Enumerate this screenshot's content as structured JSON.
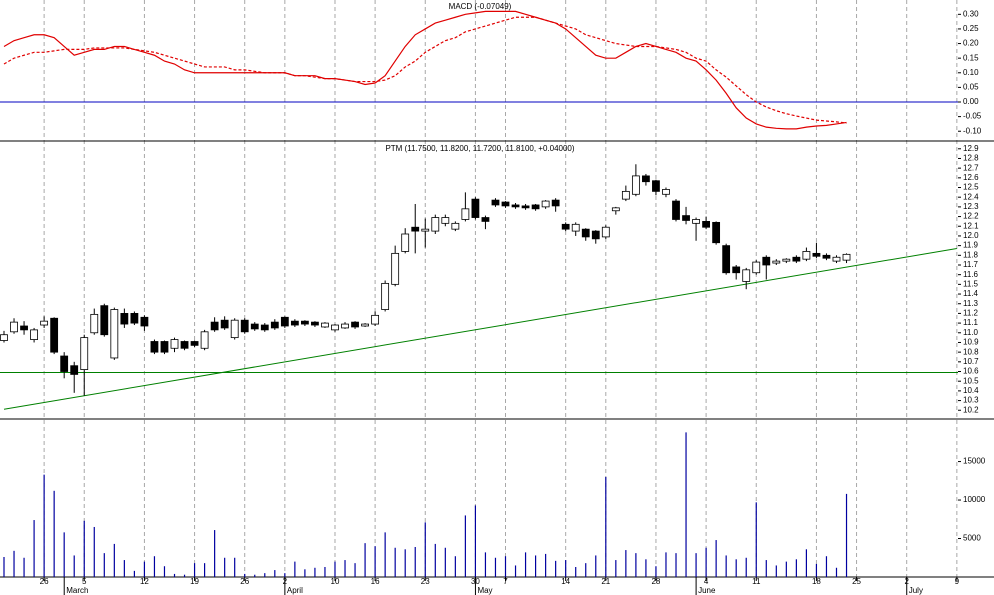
{
  "chart_data": [
    {
      "type": "line",
      "title": "MACD (-0.07049)",
      "ylim": [
        -0.13,
        0.349
      ],
      "yticks": [
        {
          "value": -0.1,
          "label": "-0.10"
        },
        -0.05,
        {
          "value": 0,
          "label": "0.00"
        },
        0.05,
        {
          "value": 0.1,
          "label": "0.10"
        },
        0.15,
        {
          "value": 0.2,
          "label": "0.20"
        },
        0.25,
        {
          "value": 0.3,
          "label": "0.30"
        }
      ],
      "hlines": [
        {
          "value": 0,
          "color": "#0000c0"
        }
      ],
      "series": [
        {
          "color": "#e00000",
          "style": "solid",
          "values": [
            0.19,
            0.21,
            0.22,
            0.23,
            0.23,
            0.22,
            0.19,
            0.16,
            0.17,
            0.18,
            0.18,
            0.19,
            0.19,
            0.18,
            0.17,
            0.16,
            0.14,
            0.13,
            0.11,
            0.1,
            0.1,
            0.1,
            0.1,
            0.1,
            0.1,
            0.1,
            0.1,
            0.1,
            0.1,
            0.09,
            0.09,
            0.09,
            0.08,
            0.08,
            0.075,
            0.07,
            0.06,
            0.065,
            0.09,
            0.14,
            0.19,
            0.23,
            0.25,
            0.27,
            0.28,
            0.29,
            0.3,
            0.305,
            0.31,
            0.31,
            0.31,
            0.31,
            0.3,
            0.29,
            0.28,
            0.27,
            0.25,
            0.22,
            0.19,
            0.16,
            0.15,
            0.15,
            0.17,
            0.19,
            0.2,
            0.19,
            0.18,
            0.17,
            0.15,
            0.14,
            0.11,
            0.075,
            0.03,
            -0.02,
            -0.055,
            -0.075,
            -0.086,
            -0.09,
            -0.092,
            -0.092,
            -0.086,
            -0.082,
            -0.08,
            -0.075,
            -0.07
          ]
        },
        {
          "color": "#e00000",
          "style": "dashed",
          "values": [
            0.13,
            0.15,
            0.16,
            0.17,
            0.17,
            0.175,
            0.18,
            0.18,
            0.18,
            0.185,
            0.185,
            0.185,
            0.185,
            0.18,
            0.175,
            0.17,
            0.16,
            0.15,
            0.14,
            0.13,
            0.12,
            0.12,
            0.12,
            0.11,
            0.11,
            0.105,
            0.1,
            0.1,
            0.1,
            0.09,
            0.09,
            0.085,
            0.08,
            0.08,
            0.075,
            0.07,
            0.07,
            0.07,
            0.075,
            0.09,
            0.12,
            0.14,
            0.17,
            0.19,
            0.21,
            0.22,
            0.24,
            0.25,
            0.26,
            0.27,
            0.28,
            0.29,
            0.29,
            0.29,
            0.28,
            0.27,
            0.26,
            0.25,
            0.23,
            0.22,
            0.21,
            0.2,
            0.195,
            0.19,
            0.19,
            0.19,
            0.185,
            0.18,
            0.17,
            0.15,
            0.14,
            0.11,
            0.085,
            0.055,
            0.025,
            0,
            -0.017,
            -0.03,
            -0.04,
            -0.048,
            -0.055,
            -0.062,
            -0.065,
            -0.068,
            -0.072
          ]
        }
      ]
    },
    {
      "type": "candlestick",
      "title": "PTM (11.7500, 11.8200, 11.7200, 11.8100, +0.04000)",
      "ylim": [
        10.12,
        12.97
      ],
      "yticks": [
        10.2,
        10.3,
        10.4,
        10.5,
        10.6,
        10.7,
        10.8,
        10.9,
        {
          "value": 11,
          "label": "11.0"
        },
        11.1,
        11.2,
        11.3,
        11.4,
        11.5,
        11.6,
        11.7,
        11.8,
        11.9,
        {
          "value": 12,
          "label": "12.0"
        },
        12.1,
        12.2,
        12.3,
        12.4,
        12.5,
        12.6,
        12.7,
        12.8,
        12.9
      ],
      "hlines": [
        {
          "value": 10.59,
          "color": "#008000"
        }
      ],
      "trendlines": [
        {
          "color": "#008000",
          "start": [
            0,
            10.21
          ],
          "end": [
            95,
            11.87
          ]
        }
      ],
      "open": [
        10.92,
        11.01,
        11.07,
        10.93,
        11.08,
        11.15,
        10.76,
        10.66,
        10.62,
        11.0,
        11.28,
        10.74,
        11.2,
        11.2,
        11.16,
        10.91,
        10.91,
        10.84,
        10.91,
        10.91,
        10.84,
        11.11,
        11.13,
        10.95,
        11.13,
        11.09,
        11.08,
        11.11,
        11.16,
        11.12,
        11.12,
        11.11,
        11.06,
        11.03,
        11.05,
        11.11,
        11.07,
        11.09,
        11.24,
        11.5,
        11.84,
        12.09,
        12.05,
        12.05,
        12.13,
        12.07,
        12.17,
        12.38,
        12.19,
        12.37,
        12.35,
        12.32,
        12.31,
        12.32,
        12.3,
        12.37,
        12.12,
        12.05,
        12.07,
        12.05,
        11.99,
        12.26,
        12.38,
        12.43,
        12.62,
        12.57,
        12.43,
        12.36,
        12.21,
        12.13,
        12.15,
        12.14,
        11.9,
        11.68,
        11.53,
        11.62,
        11.78,
        11.72,
        11.74,
        11.78,
        11.76,
        11.82,
        11.8,
        11.74,
        11.75
      ],
      "high": [
        11.02,
        11.15,
        11.12,
        11.05,
        11.17,
        11.16,
        10.8,
        10.7,
        10.98,
        11.25,
        11.3,
        11.26,
        11.25,
        11.22,
        11.18,
        10.93,
        10.92,
        10.95,
        10.92,
        10.92,
        11.03,
        11.16,
        11.17,
        11.15,
        11.15,
        11.11,
        11.1,
        11.14,
        11.17,
        11.14,
        11.13,
        11.12,
        11.11,
        11.09,
        11.11,
        11.12,
        11.1,
        11.22,
        11.54,
        11.9,
        12.08,
        12.33,
        12.18,
        12.22,
        12.22,
        12.15,
        12.45,
        12.4,
        12.21,
        12.39,
        12.36,
        12.34,
        12.33,
        12.33,
        12.37,
        12.39,
        12.14,
        12.14,
        12.08,
        12.06,
        12.11,
        12.3,
        12.52,
        12.74,
        12.64,
        12.58,
        12.5,
        12.38,
        12.3,
        12.19,
        12.2,
        12.15,
        11.92,
        11.7,
        11.67,
        11.75,
        11.8,
        11.76,
        11.77,
        11.8,
        11.88,
        11.93,
        11.82,
        11.8,
        11.82
      ],
      "low": [
        10.9,
        10.99,
        10.98,
        10.9,
        11.05,
        10.78,
        10.53,
        10.38,
        10.35,
        10.98,
        10.96,
        10.72,
        11.05,
        11.08,
        11.02,
        10.78,
        10.78,
        10.8,
        10.82,
        10.85,
        10.82,
        11.01,
        11.03,
        10.93,
        10.99,
        11.02,
        11.01,
        11.03,
        11.05,
        11.06,
        11.07,
        11.06,
        11.05,
        11.01,
        11.04,
        11.04,
        11.06,
        11.07,
        11.22,
        11.48,
        11.82,
        11.82,
        11.88,
        12.02,
        12.1,
        12.05,
        12.15,
        12.17,
        12.07,
        12.3,
        12.29,
        12.28,
        12.27,
        12.26,
        12.28,
        12.25,
        12.05,
        12.0,
        11.95,
        11.92,
        11.97,
        12.22,
        12.36,
        12.41,
        12.52,
        12.42,
        12.4,
        12.15,
        12.12,
        11.95,
        12.07,
        11.91,
        11.6,
        11.55,
        11.45,
        11.6,
        11.55,
        11.7,
        11.72,
        11.72,
        11.74,
        11.77,
        11.75,
        11.72,
        11.72
      ],
      "close": [
        10.98,
        11.11,
        11.03,
        11.03,
        11.12,
        10.8,
        10.6,
        10.57,
        10.95,
        11.19,
        10.98,
        11.24,
        11.09,
        11.1,
        11.07,
        10.8,
        10.8,
        10.93,
        10.84,
        10.87,
        11.01,
        11.03,
        11.05,
        11.13,
        11.01,
        11.04,
        11.03,
        11.05,
        11.07,
        11.08,
        11.09,
        11.08,
        11.1,
        11.08,
        11.09,
        11.06,
        11.09,
        11.18,
        11.51,
        11.82,
        12.02,
        12.05,
        12.07,
        12.19,
        12.19,
        12.13,
        12.28,
        12.19,
        12.15,
        12.32,
        12.31,
        12.3,
        12.29,
        12.28,
        12.36,
        12.31,
        12.07,
        12.12,
        11.99,
        11.97,
        12.09,
        12.29,
        12.46,
        12.62,
        12.56,
        12.46,
        12.48,
        12.17,
        12.16,
        12.17,
        12.09,
        11.93,
        11.62,
        11.62,
        11.65,
        11.73,
        11.7,
        11.74,
        11.76,
        11.74,
        11.84,
        11.79,
        11.77,
        11.78,
        11.81
      ]
    },
    {
      "type": "bar",
      "color": "#0000a0",
      "ylim": [
        0,
        20400
      ],
      "yticks": [
        5000,
        10000,
        15000
      ],
      "categories": [
        null,
        null,
        null,
        null,
        "26",
        null,
        null,
        null,
        "5",
        null,
        null,
        null,
        null,
        null,
        "12",
        null,
        null,
        null,
        null,
        "19",
        null,
        null,
        null,
        null,
        "26",
        null,
        null,
        null,
        "2",
        null,
        null,
        null,
        null,
        "10",
        null,
        null,
        null,
        "16",
        null,
        null,
        null,
        null,
        "23",
        null,
        null,
        null,
        null,
        "30",
        null,
        null,
        "7",
        null,
        null,
        null,
        null,
        null,
        "14",
        null,
        null,
        null,
        "21",
        null,
        null,
        null,
        null,
        "28",
        null,
        null,
        null,
        null,
        "4",
        null,
        null,
        null,
        null,
        "11",
        null,
        null,
        null,
        null,
        null,
        "18",
        null,
        null,
        null,
        "25",
        null,
        null,
        null,
        null,
        "2",
        null,
        null,
        null,
        null,
        "9"
      ],
      "months": [
        null,
        null,
        null,
        null,
        null,
        null,
        null,
        "March",
        null,
        null,
        null,
        null,
        null,
        null,
        null,
        null,
        null,
        null,
        null,
        null,
        null,
        null,
        null,
        null,
        null,
        null,
        null,
        null,
        null,
        "April",
        null,
        null,
        null,
        null,
        null,
        null,
        null,
        null,
        null,
        null,
        null,
        null,
        null,
        null,
        null,
        null,
        null,
        null,
        "May",
        null,
        null,
        null,
        null,
        null,
        null,
        null,
        null,
        null,
        null,
        null,
        null,
        null,
        null,
        null,
        null,
        null,
        null,
        null,
        null,
        null,
        "June",
        null,
        null,
        null,
        null,
        null,
        null,
        null,
        null,
        null,
        null,
        null,
        null,
        null,
        null,
        null,
        null,
        null,
        null,
        null,
        null,
        "July",
        null,
        null,
        null,
        null
      ],
      "values": [
        2600,
        3400,
        2500,
        7400,
        13300,
        11200,
        5800,
        2800,
        7300,
        6500,
        3100,
        4300,
        2200,
        800,
        2000,
        2700,
        1400,
        400,
        300,
        1800,
        1800,
        6100,
        2500,
        2500,
        400,
        300,
        500,
        900,
        500,
        2000,
        1000,
        1200,
        1300,
        2000,
        2200,
        1800,
        4400,
        4000,
        5800,
        3800,
        3600,
        3900,
        7100,
        4300,
        3800,
        2700,
        8000,
        9300,
        3200,
        2500,
        2700,
        1500,
        3200,
        2800,
        3000,
        2100,
        2200,
        1300,
        1800,
        2800,
        13000,
        2200,
        3500,
        3100,
        2300,
        1400,
        3200,
        3100,
        18800,
        3100,
        3800,
        4800,
        2800,
        2300,
        2500,
        9700,
        2200,
        1500,
        2000,
        2300,
        3600,
        1700,
        2700,
        1200,
        10800,
        null,
        null,
        null,
        null,
        null,
        null,
        null,
        null,
        null,
        null,
        null
      ]
    }
  ]
}
